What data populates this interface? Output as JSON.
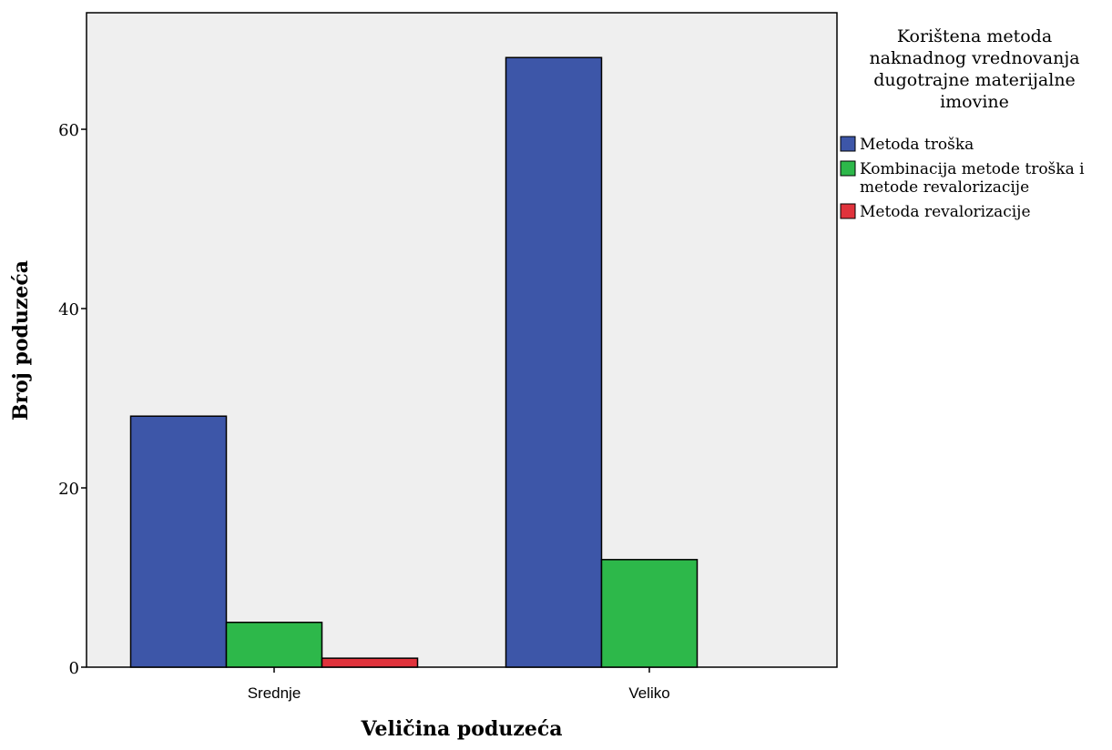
{
  "chart_data": {
    "type": "bar",
    "title": "",
    "xlabel": "Veličina poduzeća",
    "ylabel": "Broj poduzeća",
    "categories": [
      "Srednje",
      "Veliko"
    ],
    "series": [
      {
        "name": "Metoda troška",
        "values": [
          28,
          68
        ],
        "color": "#3d56a8"
      },
      {
        "name": "Kombinacija metode troška i metode revalorizacije",
        "values": [
          5,
          12
        ],
        "color": "#2db84a"
      },
      {
        "name": "Metoda revalorizacije",
        "values": [
          1,
          0
        ],
        "color": "#e0333c"
      }
    ],
    "ylim": [
      0,
      73
    ],
    "yticks": [
      0,
      20,
      40,
      60
    ],
    "grid": false,
    "plot_background": "#efefef",
    "legend": {
      "position": "right",
      "title": "Korištena metoda naknadnog vrednovanja dugotrajne materijalne imovine",
      "title_lines": [
        "Korištena metoda",
        "naknadnog vrednovanja",
        "dugotrajne materijalne",
        "imovine"
      ],
      "entry_lines": [
        [
          "Metoda troška"
        ],
        [
          "Kombinacija metode troška i",
          "metode revalorizacije"
        ],
        [
          "Metoda revalorizacije"
        ]
      ]
    }
  }
}
